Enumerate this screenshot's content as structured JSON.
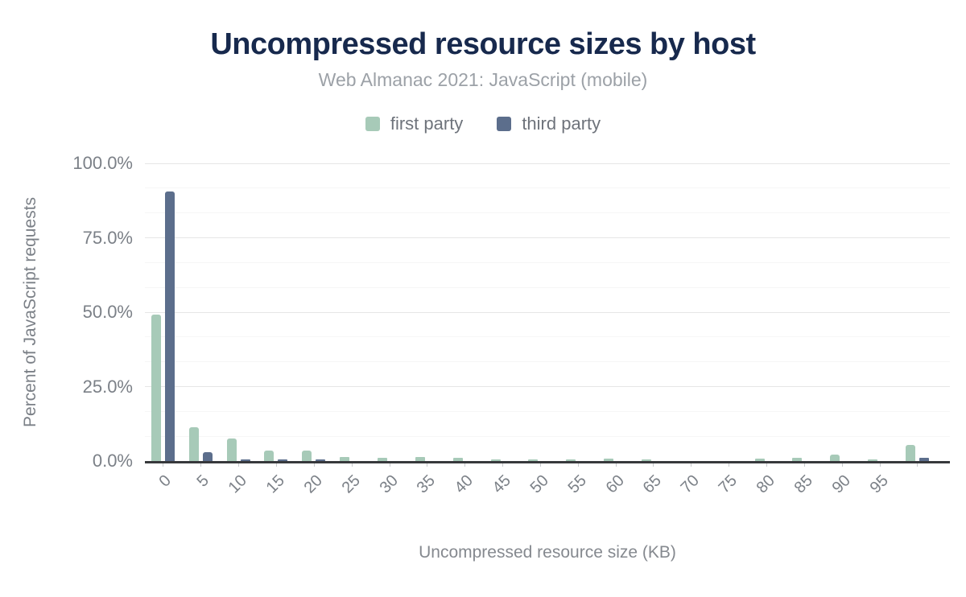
{
  "header": {
    "title": "Uncompressed resource sizes by host",
    "subtitle": "Web Almanac 2021: JavaScript (mobile)"
  },
  "legend": {
    "items": [
      {
        "label": "first party",
        "color": "#a7cab8"
      },
      {
        "label": "third party",
        "color": "#5c6e8c"
      }
    ]
  },
  "chart_data": {
    "type": "bar",
    "title": "Uncompressed resource sizes by host",
    "subtitle": "Web Almanac 2021: JavaScript (mobile)",
    "xlabel": "Uncompressed resource size (KB)",
    "ylabel": "Percent of JavaScript requests",
    "ylim": [
      0,
      100
    ],
    "grid": "on",
    "legend_position": "top-center",
    "categories": [
      "0",
      "5",
      "10",
      "15",
      "20",
      "25",
      "30",
      "35",
      "40",
      "45",
      "50",
      "55",
      "60",
      "65",
      "70",
      "75",
      "80",
      "85",
      "90",
      "95",
      ""
    ],
    "series": [
      {
        "name": "first party",
        "color": "#a7cab8",
        "values": [
          49.3,
          11.4,
          7.7,
          3.5,
          3.6,
          1.4,
          1.1,
          1.4,
          1.1,
          0.6,
          0.6,
          0.6,
          0.7,
          0.6,
          0.1,
          0.1,
          0.8,
          1.1,
          2.1,
          0.5,
          5.5
        ]
      },
      {
        "name": "third party",
        "color": "#5c6e8c",
        "values": [
          90.6,
          3.1,
          0.6,
          0.6,
          0.5,
          0.1,
          0.1,
          0.1,
          0.1,
          0.1,
          0.1,
          0.1,
          0.1,
          0.1,
          0.0,
          0.0,
          0.1,
          0.1,
          0.1,
          0.0,
          1.2
        ]
      }
    ],
    "y_axis": {
      "max": 100,
      "major_step": 25,
      "minor_divisions": 12,
      "tick_labels": [
        "0.0%",
        "25.0%",
        "50.0%",
        "75.0%",
        "100.0%"
      ]
    },
    "colors": {
      "title": "#17294d",
      "subtitle": "#9ca1a7",
      "axis_text": "#7b8087",
      "axis_line": "#37393c",
      "gridline_major": "#e6e6e6",
      "gridline_minor": "#f6f6f6"
    }
  }
}
